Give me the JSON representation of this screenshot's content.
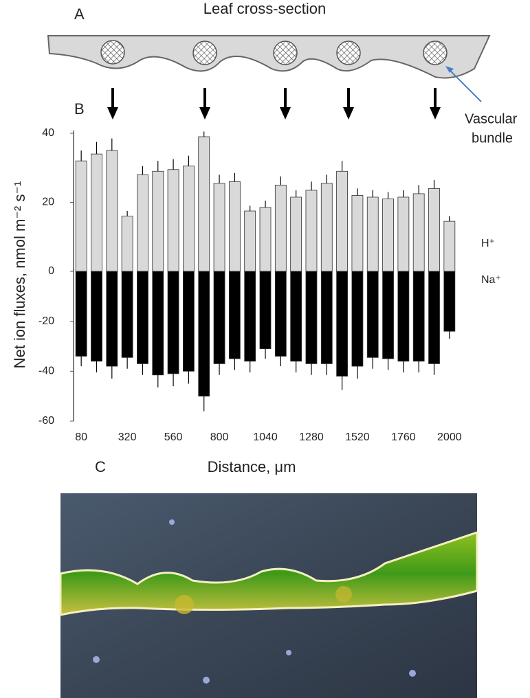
{
  "panels": {
    "a": "A",
    "b": "B",
    "c": "C"
  },
  "diagram": {
    "title": "Leaf cross-section",
    "callout": [
      "Vascular",
      "bundle"
    ]
  },
  "chart_data": [
    {
      "type": "bar",
      "x": [
        80,
        160,
        240,
        320,
        400,
        480,
        560,
        640,
        720,
        800,
        880,
        960,
        1040,
        1120,
        1200,
        1280,
        1360,
        1440,
        1520,
        1600,
        1680,
        1760,
        1840,
        1920,
        2000
      ],
      "xlim": [
        40,
        2040
      ],
      "ylim": [
        0,
        40
      ],
      "yticks": [
        20,
        40
      ],
      "series": [
        {
          "name": "H⁺",
          "color": "#d9d9d9",
          "values": [
            32,
            34,
            35,
            16,
            28,
            29,
            29.5,
            30.5,
            39,
            25.5,
            26,
            17.5,
            18.5,
            25,
            21.5,
            23.5,
            25.5,
            29,
            22,
            21.5,
            21,
            21.5,
            22.5,
            24,
            14.5
          ],
          "errors": [
            3,
            3.5,
            3.5,
            1.5,
            2.5,
            3,
            3,
            3,
            1.5,
            2.5,
            2.5,
            1.5,
            2,
            2.5,
            2,
            2.5,
            2.5,
            3,
            2,
            2,
            2,
            2,
            2.5,
            2.5,
            1.5
          ]
        }
      ]
    },
    {
      "type": "bar",
      "x": [
        80,
        160,
        240,
        320,
        400,
        480,
        560,
        640,
        720,
        800,
        880,
        960,
        1040,
        1120,
        1200,
        1280,
        1360,
        1440,
        1520,
        1600,
        1680,
        1760,
        1840,
        1920,
        2000
      ],
      "xlim": [
        40,
        2040
      ],
      "ylim": [
        -60,
        0
      ],
      "yticks": [
        0,
        -20,
        -40,
        -60
      ],
      "xticks": [
        80,
        320,
        560,
        800,
        1040,
        1280,
        1520,
        1760,
        2000
      ],
      "xlabel": "Distance, μm",
      "ylabel": "Net ion fluxes, nmol m⁻² s⁻¹",
      "series": [
        {
          "name": "Na⁺",
          "color": "#000000",
          "values": [
            -34,
            -36,
            -38,
            -34.5,
            -37,
            -41.5,
            -41,
            -40,
            -50,
            -37,
            -35,
            -36,
            -31,
            -34,
            -36,
            -37,
            -37,
            -42,
            -38,
            -34.5,
            -35,
            -36,
            -36,
            -37,
            -24
          ],
          "errors": [
            4,
            4.5,
            5,
            4.5,
            4.5,
            5,
            5,
            5,
            6,
            4.5,
            4.5,
            4.5,
            4,
            4,
            4.5,
            4.5,
            4.5,
            5.5,
            5,
            4.5,
            4.5,
            4.5,
            4.5,
            4.5,
            3
          ]
        }
      ]
    }
  ]
}
